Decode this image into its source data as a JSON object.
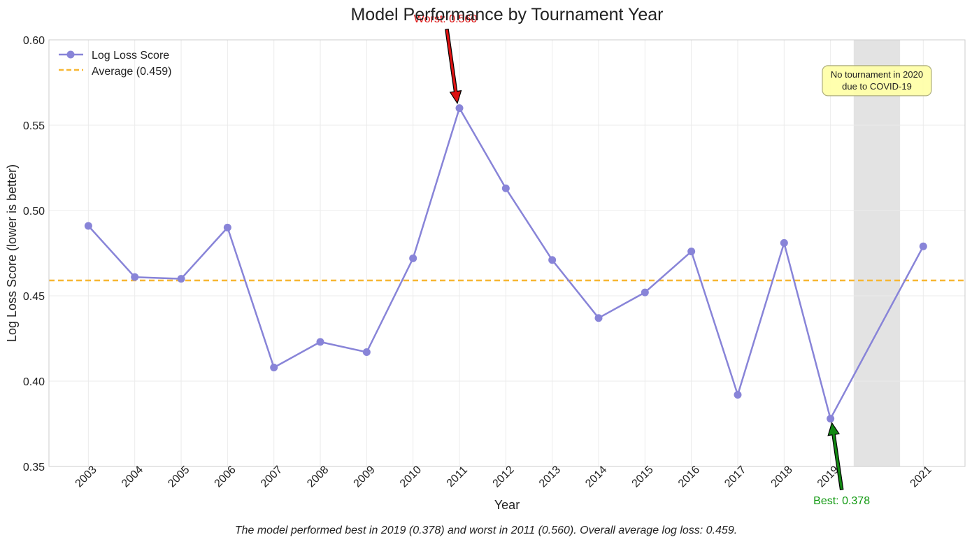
{
  "chart_data": {
    "type": "line",
    "title": "Model Performance by Tournament Year",
    "xlabel": "Year",
    "ylabel": "Log Loss Score (lower is better)",
    "ylim": [
      0.35,
      0.6
    ],
    "xlim": [
      2002.15,
      2021.9
    ],
    "yticks": [
      0.35,
      0.4,
      0.45,
      0.5,
      0.55,
      0.6
    ],
    "ytick_labels": [
      "0.35",
      "0.40",
      "0.45",
      "0.50",
      "0.55",
      "0.60"
    ],
    "xticks": [
      2003,
      2004,
      2005,
      2006,
      2007,
      2008,
      2009,
      2010,
      2011,
      2012,
      2013,
      2014,
      2015,
      2016,
      2017,
      2018,
      2019,
      2021
    ],
    "xtick_labels": [
      "2003",
      "2004",
      "2005",
      "2006",
      "2007",
      "2008",
      "2009",
      "2010",
      "2011",
      "2012",
      "2013",
      "2014",
      "2015",
      "2016",
      "2017",
      "2018",
      "2019",
      "2021"
    ],
    "grid": true,
    "legend_position": "top-left",
    "series": [
      {
        "name": "Log Loss Score",
        "color": "#8884d8",
        "x": [
          2003,
          2004,
          2005,
          2006,
          2007,
          2008,
          2009,
          2010,
          2011,
          2012,
          2013,
          2014,
          2015,
          2016,
          2017,
          2018,
          2019,
          2021
        ],
        "y": [
          0.491,
          0.461,
          0.46,
          0.49,
          0.408,
          0.423,
          0.417,
          0.472,
          0.56,
          0.513,
          0.471,
          0.437,
          0.452,
          0.476,
          0.392,
          0.481,
          0.378,
          0.479
        ]
      }
    ],
    "reference_line": {
      "name": "Average (0.459)",
      "value": 0.459,
      "color": "#f7b733",
      "style": "dashed"
    },
    "shaded_region": {
      "x_from": 2019.5,
      "x_to": 2020.5,
      "color": "#d9d9d9"
    },
    "annotations": {
      "worst": {
        "text": "Worst: 0.560",
        "x": 2011,
        "y": 0.56,
        "color": "#dd1111",
        "arrow_color": "#dd1111"
      },
      "best": {
        "text": "Best: 0.378",
        "x": 2019,
        "y": 0.378,
        "color": "#119911",
        "arrow_color": "#118811"
      },
      "covid_note": {
        "line1": "No tournament in 2020",
        "line2": "due to COVID-19",
        "x": 2020,
        "y": 0.573,
        "fill": "#ffffaa",
        "border": "#aaaa77"
      }
    },
    "caption": "The model performed best in 2019 (0.378) and worst in 2011 (0.560). Overall average log loss: 0.459."
  }
}
